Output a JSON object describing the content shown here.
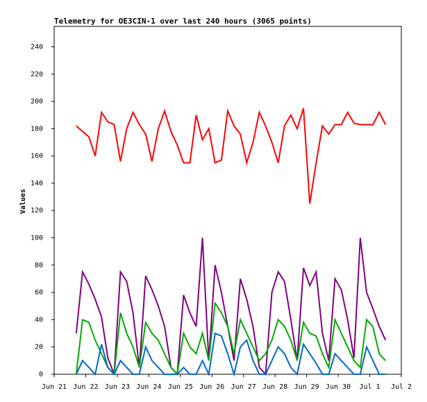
{
  "chart_data": {
    "type": "line",
    "title": "Telemetry for OE3CIN-1 over last 240 hours (3065 points)",
    "y_label": "Values",
    "xlim": [
      0,
      11
    ],
    "xticks": [
      {
        "value": 0,
        "label": "Jun 21"
      },
      {
        "value": 1,
        "label": "Jun 22"
      },
      {
        "value": 2,
        "label": "Jun 23"
      },
      {
        "value": 3,
        "label": "Jun 24"
      },
      {
        "value": 4,
        "label": "Jun 25"
      },
      {
        "value": 5,
        "label": "Jun 26"
      },
      {
        "value": 6,
        "label": "Jun 27"
      },
      {
        "value": 7,
        "label": "Jun 28"
      },
      {
        "value": 8,
        "label": "Jun 29"
      },
      {
        "value": 9,
        "label": "Jun 30"
      },
      {
        "value": 10,
        "label": "Jul 1"
      },
      {
        "value": 11,
        "label": "Jul 2"
      }
    ],
    "ylim": [
      0,
      255
    ],
    "yticks": [
      0,
      20,
      40,
      60,
      80,
      100,
      120,
      140,
      160,
      180,
      200,
      220,
      240
    ],
    "x": [
      0.7,
      0.9,
      1.1,
      1.3,
      1.5,
      1.7,
      1.9,
      2.1,
      2.3,
      2.5,
      2.7,
      2.9,
      3.1,
      3.3,
      3.5,
      3.7,
      3.9,
      4.1,
      4.3,
      4.5,
      4.7,
      4.9,
      5.1,
      5.3,
      5.5,
      5.7,
      5.9,
      6.1,
      6.3,
      6.5,
      6.7,
      6.9,
      7.1,
      7.3,
      7.5,
      7.7,
      7.9,
      8.1,
      8.3,
      8.5,
      8.7,
      8.9,
      9.1,
      9.3,
      9.5,
      9.7,
      9.9,
      10.1,
      10.3,
      10.5
    ],
    "series": [
      {
        "color": "#ff0000",
        "values": [
          182,
          178,
          174,
          160,
          192,
          185,
          183,
          156,
          180,
          192,
          183,
          176,
          156,
          180,
          193,
          178,
          168,
          155,
          155,
          190,
          172,
          180,
          155,
          157,
          193,
          182,
          176,
          155,
          170,
          192,
          182,
          170,
          155,
          182,
          190,
          180,
          195,
          125,
          155,
          182,
          176,
          183,
          183,
          192,
          184,
          183,
          183,
          183,
          192,
          183
        ]
      },
      {
        "color": "#800080",
        "values": [
          30,
          75,
          66,
          55,
          42,
          12,
          0,
          75,
          68,
          45,
          5,
          72,
          62,
          50,
          35,
          5,
          0,
          58,
          45,
          35,
          100,
          10,
          80,
          60,
          35,
          10,
          70,
          55,
          35,
          5,
          0,
          60,
          75,
          68,
          40,
          10,
          78,
          65,
          75,
          30,
          10,
          70,
          62,
          40,
          12,
          100,
          60,
          48,
          35,
          25
        ]
      },
      {
        "color": "#00aa00",
        "values": [
          0,
          40,
          38,
          25,
          15,
          5,
          0,
          45,
          30,
          20,
          5,
          38,
          30,
          25,
          15,
          5,
          0,
          30,
          20,
          15,
          30,
          10,
          52,
          45,
          35,
          15,
          40,
          30,
          20,
          10,
          15,
          25,
          40,
          35,
          25,
          10,
          38,
          30,
          28,
          15,
          5,
          40,
          30,
          20,
          10,
          5,
          40,
          35,
          15,
          10
        ]
      },
      {
        "color": "#0066cc",
        "values": [
          0,
          10,
          5,
          0,
          22,
          5,
          0,
          10,
          5,
          0,
          0,
          20,
          10,
          5,
          0,
          0,
          0,
          5,
          0,
          0,
          10,
          0,
          30,
          28,
          15,
          0,
          20,
          25,
          10,
          0,
          0,
          10,
          20,
          15,
          5,
          0,
          22,
          15,
          8,
          0,
          0,
          15,
          10,
          5,
          0,
          0,
          20,
          10,
          0,
          0
        ]
      }
    ]
  }
}
